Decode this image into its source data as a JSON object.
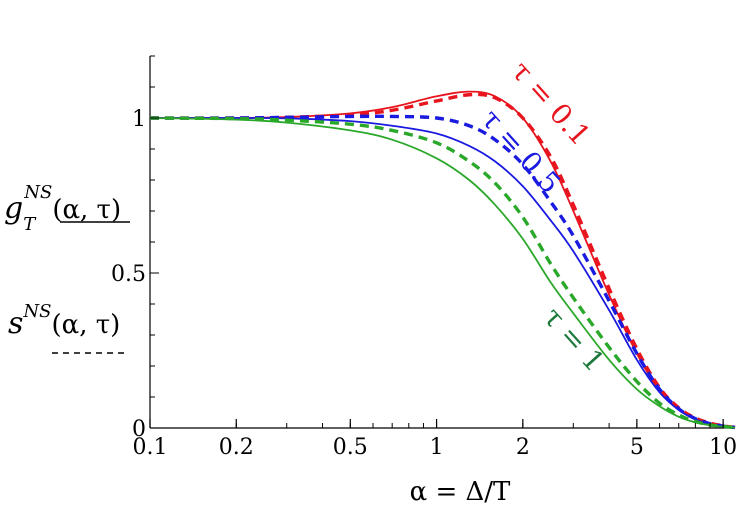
{
  "chart_data": {
    "type": "line",
    "xlabel": "α = Δ/T",
    "x_scale": "log",
    "xlim": [
      0.1,
      11
    ],
    "ylim": [
      0,
      1.2
    ],
    "x_ticks": [
      {
        "value": 0.1,
        "label": "0.1"
      },
      {
        "value": 0.2,
        "label": "0.2"
      },
      {
        "value": 0.5,
        "label": "0.5"
      },
      {
        "value": 1,
        "label": "1"
      },
      {
        "value": 2,
        "label": "2"
      },
      {
        "value": 5,
        "label": "5"
      },
      {
        "value": 10,
        "label": "10"
      }
    ],
    "y_ticks": [
      {
        "value": 0,
        "label": "0"
      },
      {
        "value": 0.5,
        "label": "0.5"
      },
      {
        "value": 1,
        "label": "1"
      }
    ],
    "legend": {
      "solid_label": "g_T^NS(α,τ)",
      "solid_main": "g",
      "solid_sub": "T",
      "solid_sup": "NS",
      "solid_args": "(α, τ)",
      "dashed_label": "s^NS(α,τ)",
      "dashed_main": "s",
      "dashed_sup": "NS",
      "dashed_args": "(α, τ)",
      "placement": "left"
    },
    "curve_labels": [
      {
        "text": "τ = 0.1",
        "color": "#e8141e"
      },
      {
        "text": "τ = 0.5",
        "color": "#1a1ae0"
      },
      {
        "text": "τ = 1",
        "color": "#1e7a3c"
      }
    ],
    "series": [
      {
        "color": "#e8141e",
        "style": "solid",
        "x": [
          0.1,
          0.2,
          0.3,
          0.5,
          0.7,
          1.0,
          1.3,
          1.6,
          2.0,
          2.5,
          3.0,
          4.0,
          5.0,
          6.0,
          7.0,
          8.0,
          9.0,
          10.0,
          11.0
        ],
        "y": [
          1.0,
          1.0,
          1.003,
          1.015,
          1.035,
          1.07,
          1.085,
          1.07,
          1.0,
          0.86,
          0.7,
          0.43,
          0.24,
          0.12,
          0.06,
          0.03,
          0.015,
          0.006,
          0.002
        ]
      },
      {
        "color": "#e8141e",
        "style": "dashed",
        "x": [
          0.1,
          0.2,
          0.3,
          0.5,
          0.7,
          1.0,
          1.3,
          1.6,
          2.0,
          2.5,
          3.0,
          4.0,
          5.0,
          6.0,
          7.0,
          8.0,
          9.0,
          10.0,
          11.0
        ],
        "y": [
          1.0,
          1.0,
          1.002,
          1.01,
          1.025,
          1.055,
          1.075,
          1.065,
          1.0,
          0.875,
          0.72,
          0.45,
          0.255,
          0.13,
          0.065,
          0.032,
          0.016,
          0.007,
          0.002
        ]
      },
      {
        "color": "#1a1ae0",
        "style": "solid",
        "x": [
          0.1,
          0.2,
          0.3,
          0.5,
          0.7,
          1.0,
          1.3,
          1.6,
          2.0,
          2.5,
          3.0,
          4.0,
          5.0,
          6.0,
          7.0,
          8.0,
          9.0,
          10.0,
          11.0
        ],
        "y": [
          1.0,
          1.0,
          0.999,
          0.99,
          0.975,
          0.95,
          0.91,
          0.86,
          0.78,
          0.67,
          0.57,
          0.38,
          0.22,
          0.115,
          0.058,
          0.028,
          0.013,
          0.005,
          0.002
        ]
      },
      {
        "color": "#1a1ae0",
        "style": "dashed",
        "x": [
          0.1,
          0.2,
          0.3,
          0.5,
          0.7,
          1.0,
          1.3,
          1.6,
          2.0,
          2.5,
          3.0,
          4.0,
          5.0,
          6.0,
          7.0,
          8.0,
          9.0,
          10.0,
          11.0
        ],
        "y": [
          1.0,
          1.0,
          1.002,
          1.005,
          1.005,
          1.0,
          0.975,
          0.93,
          0.85,
          0.73,
          0.62,
          0.41,
          0.24,
          0.125,
          0.062,
          0.03,
          0.014,
          0.006,
          0.002
        ]
      },
      {
        "color": "#2aa82a",
        "style": "solid",
        "x": [
          0.1,
          0.2,
          0.3,
          0.5,
          0.7,
          1.0,
          1.3,
          1.6,
          2.0,
          2.5,
          3.0,
          4.0,
          5.0,
          6.0,
          7.0,
          8.0,
          9.0,
          10.0,
          11.0
        ],
        "y": [
          1.0,
          0.995,
          0.985,
          0.96,
          0.93,
          0.87,
          0.8,
          0.72,
          0.61,
          0.47,
          0.37,
          0.22,
          0.125,
          0.07,
          0.036,
          0.018,
          0.009,
          0.004,
          0.001
        ]
      },
      {
        "color": "#2aa82a",
        "style": "dashed",
        "x": [
          0.1,
          0.2,
          0.3,
          0.5,
          0.7,
          1.0,
          1.3,
          1.6,
          2.0,
          2.5,
          3.0,
          4.0,
          5.0,
          6.0,
          7.0,
          8.0,
          9.0,
          10.0,
          11.0
        ],
        "y": [
          1.0,
          0.998,
          0.993,
          0.98,
          0.96,
          0.92,
          0.86,
          0.79,
          0.68,
          0.53,
          0.42,
          0.26,
          0.15,
          0.08,
          0.042,
          0.021,
          0.01,
          0.005,
          0.001
        ]
      }
    ]
  }
}
